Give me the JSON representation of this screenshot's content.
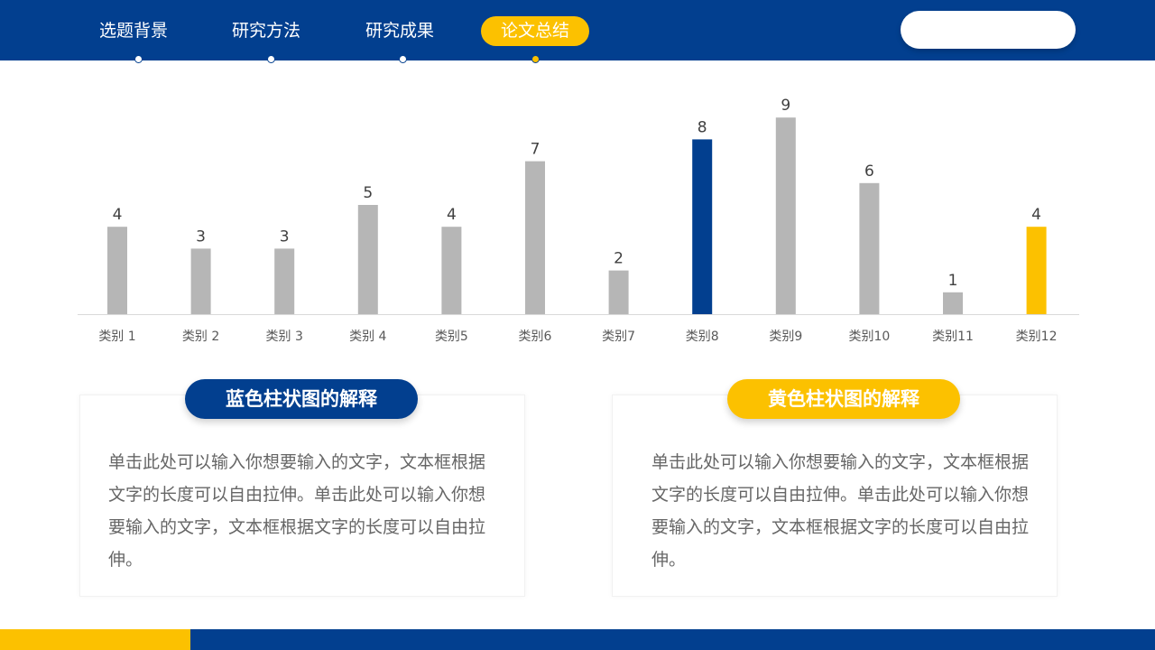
{
  "nav": {
    "items": [
      {
        "label": "选题背景",
        "active": false
      },
      {
        "label": "研究方法",
        "active": false
      },
      {
        "label": "研究成果",
        "active": false
      },
      {
        "label": "论文总结",
        "active": true
      }
    ]
  },
  "search": {
    "placeholder": ""
  },
  "colors": {
    "primary": "#023f8f",
    "accent": "#fcc100",
    "bar_default": "#b6b6b6"
  },
  "chart_data": {
    "type": "bar",
    "categories": [
      "类别 1",
      "类别 2",
      "类别 3",
      "类别 4",
      "类别5",
      "类别6",
      "类别7",
      "类别8",
      "类别9",
      "类别10",
      "类别11",
      "类别12"
    ],
    "values": [
      4,
      3,
      3,
      5,
      4,
      7,
      2,
      8,
      9,
      6,
      1,
      4
    ],
    "bar_colors": [
      "#b6b6b6",
      "#b6b6b6",
      "#b6b6b6",
      "#b6b6b6",
      "#b6b6b6",
      "#b6b6b6",
      "#b6b6b6",
      "#023f8f",
      "#b6b6b6",
      "#b6b6b6",
      "#b6b6b6",
      "#fcc100"
    ],
    "ylim": [
      0,
      10
    ],
    "grid": false,
    "data_labels": true
  },
  "cards": {
    "left": {
      "title": "蓝色柱状图的解释",
      "body": "单击此处可以输入你想要输入的文字，文本框根据文字的长度可以自由拉伸。单击此处可以输入你想要输入的文字，文本框根据文字的长度可以自由拉伸。"
    },
    "right": {
      "title": "黄色柱状图的解释",
      "body": "单击此处可以输入你想要输入的文字，文本框根据文字的长度可以自由拉伸。单击此处可以输入你想要输入的文字，文本框根据文字的长度可以自由拉伸。"
    }
  }
}
